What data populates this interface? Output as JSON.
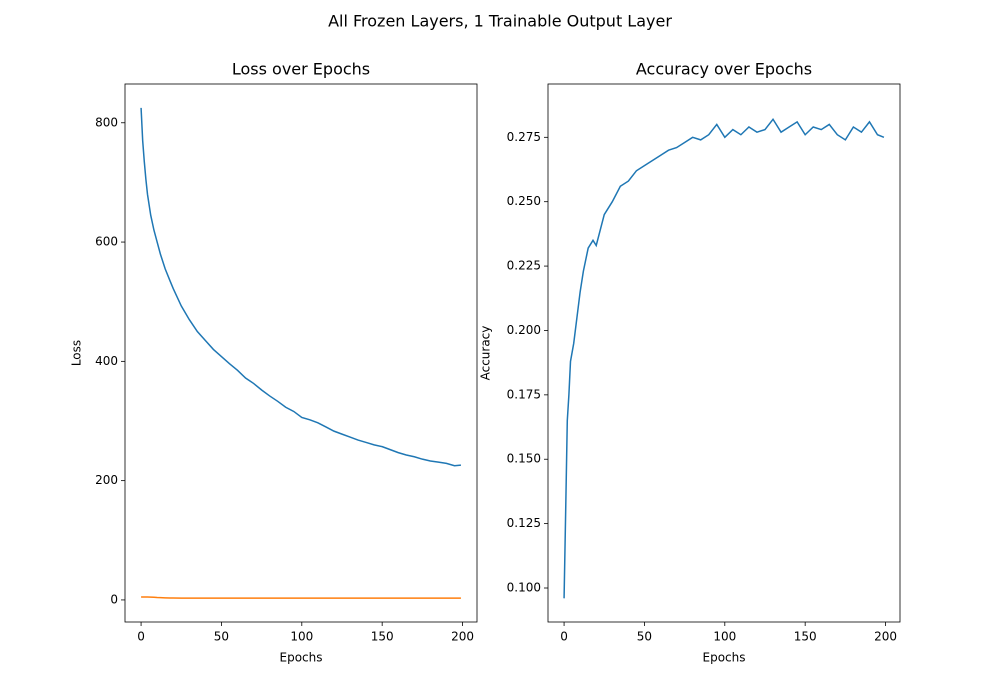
{
  "title": "All Frozen Layers, 1 Trainable Output Layer",
  "chart_data": [
    {
      "type": "line",
      "title": "Loss over Epochs",
      "x_label": "Epochs",
      "y_label": "Loss",
      "x": [
        0,
        1,
        2,
        3,
        4,
        6,
        8,
        10,
        12,
        15,
        18,
        20,
        25,
        30,
        35,
        40,
        45,
        50,
        55,
        60,
        65,
        70,
        75,
        80,
        85,
        90,
        95,
        100,
        105,
        110,
        115,
        120,
        125,
        130,
        135,
        140,
        145,
        150,
        155,
        160,
        165,
        170,
        175,
        180,
        185,
        190,
        195,
        199
      ],
      "series": [
        {
          "color": "#1f77b4",
          "values": [
            825,
            770,
            735,
            705,
            680,
            645,
            620,
            600,
            580,
            555,
            535,
            522,
            493,
            470,
            450,
            435,
            420,
            408,
            396,
            385,
            372,
            363,
            352,
            342,
            333,
            323,
            316,
            306,
            302,
            297,
            290,
            283,
            278,
            273,
            268,
            264,
            260,
            257,
            252,
            247,
            243,
            240,
            236,
            233,
            231,
            229,
            225,
            226
          ]
        },
        {
          "color": "#ff7f0e",
          "values": [
            5,
            5,
            5,
            5,
            5,
            4.8,
            4.5,
            4,
            3.8,
            3.5,
            3.3,
            3.2,
            3,
            3,
            3,
            3,
            3,
            3,
            3,
            3,
            3,
            3,
            3,
            3,
            3,
            3,
            3,
            3,
            3,
            3,
            3,
            3,
            3,
            3,
            3,
            3,
            3,
            3,
            3,
            3,
            3,
            3,
            3,
            3,
            3,
            3,
            3,
            3
          ]
        }
      ],
      "xlim": [
        -10,
        209
      ],
      "ylim": [
        -37,
        865
      ],
      "xticks": [
        0,
        50,
        100,
        150,
        200
      ],
      "yticks": [
        0,
        200,
        400,
        600,
        800
      ]
    },
    {
      "type": "line",
      "title": "Accuracy over Epochs",
      "x_label": "Epochs",
      "y_label": "Accuracy",
      "x": [
        0,
        1,
        2,
        3,
        4,
        6,
        8,
        10,
        12,
        15,
        18,
        20,
        25,
        30,
        35,
        40,
        45,
        50,
        55,
        60,
        65,
        70,
        75,
        80,
        85,
        90,
        95,
        100,
        105,
        110,
        115,
        120,
        125,
        130,
        135,
        140,
        145,
        150,
        155,
        160,
        165,
        170,
        175,
        180,
        185,
        190,
        195,
        199
      ],
      "series": [
        {
          "color": "#1f77b4",
          "values": [
            0.096,
            0.13,
            0.165,
            0.175,
            0.188,
            0.195,
            0.205,
            0.215,
            0.223,
            0.232,
            0.235,
            0.233,
            0.245,
            0.25,
            0.256,
            0.258,
            0.262,
            0.264,
            0.266,
            0.268,
            0.27,
            0.271,
            0.273,
            0.275,
            0.274,
            0.276,
            0.28,
            0.275,
            0.278,
            0.276,
            0.279,
            0.277,
            0.278,
            0.282,
            0.277,
            0.279,
            0.281,
            0.276,
            0.279,
            0.278,
            0.28,
            0.276,
            0.274,
            0.279,
            0.277,
            0.281,
            0.276,
            0.275
          ]
        }
      ],
      "xlim": [
        -10,
        209
      ],
      "ylim": [
        0.0868,
        0.2957
      ],
      "xticks": [
        0,
        50,
        100,
        150,
        200
      ],
      "yticks": [
        {
          "value": 0.1,
          "label": "0.100"
        },
        {
          "value": 0.125,
          "label": "0.125"
        },
        {
          "value": 0.15,
          "label": "0.150"
        },
        {
          "value": 0.175,
          "label": "0.175"
        },
        {
          "value": 0.2,
          "label": "0.200"
        },
        {
          "value": 0.225,
          "label": "0.225"
        },
        {
          "value": 0.25,
          "label": "0.250"
        },
        {
          "value": 0.275,
          "label": "0.275"
        }
      ]
    }
  ]
}
